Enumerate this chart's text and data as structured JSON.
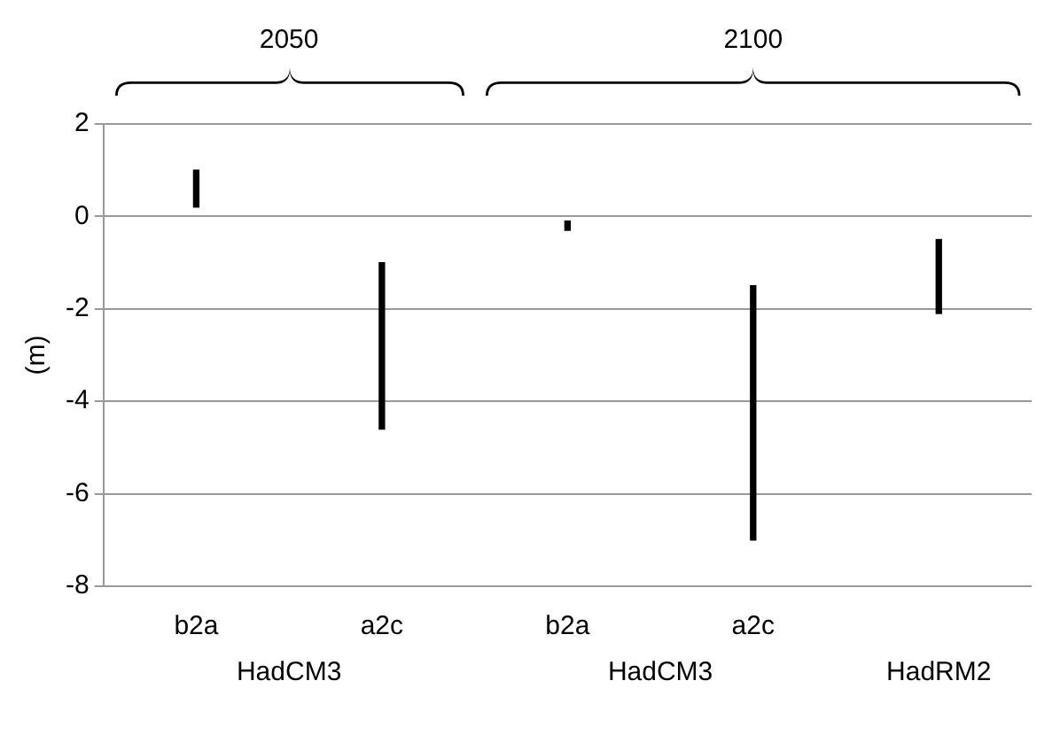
{
  "chart_data": {
    "type": "bar",
    "categories": [
      "b2a",
      "a2c",
      "b2a",
      "a2c",
      null
    ],
    "base": [
      0.2,
      -4.6,
      -0.3,
      -7.0,
      -2.1
    ],
    "values": [
      0.8,
      3.6,
      0.2,
      5.5,
      1.6
    ],
    "color": "#000000",
    "ylabel": "(m)",
    "ylim": [
      -8,
      2
    ],
    "yticks": [
      -8,
      -6,
      -4,
      -2,
      0,
      2
    ],
    "grid": "y",
    "legend": false,
    "annotations": [
      "2050",
      "2100",
      "HadCM3",
      "HadCM3",
      "HadRM2"
    ]
  }
}
